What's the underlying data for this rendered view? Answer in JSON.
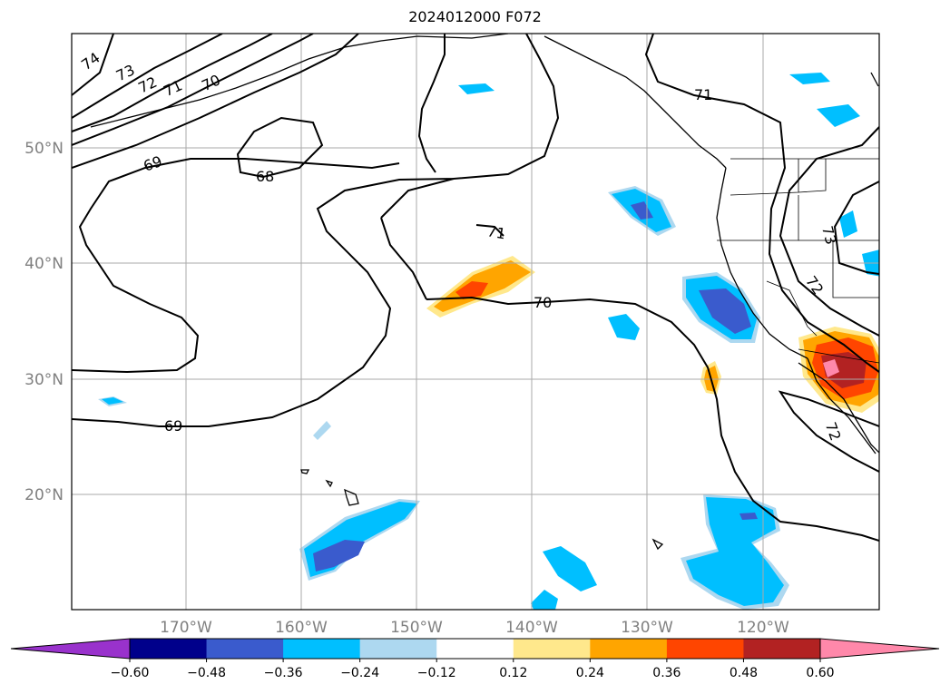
{
  "title": "2024012000 F072",
  "lat_labels": [
    "50°N",
    "40°N",
    "30°N",
    "20°N"
  ],
  "lon_labels": [
    "170°W",
    "160°W",
    "150°W",
    "140°W",
    "130°W",
    "120°W"
  ],
  "colorbar": {
    "colors": [
      "#9932cc",
      "#00008b",
      "#3a5bcd",
      "#00bfff",
      "#add8f0",
      "#ffffff",
      "#ffe88c",
      "#ffa500",
      "#ff4500",
      "#b22222",
      "#ff88aa"
    ],
    "tick_labels": [
      "−0.60",
      "−0.48",
      "−0.36",
      "−0.24",
      "−0.12",
      "0.12",
      "0.24",
      "0.36",
      "0.48",
      "0.60"
    ]
  },
  "contour_labels": [
    {
      "text": "74"
    },
    {
      "text": "73"
    },
    {
      "text": "72"
    },
    {
      "text": "71"
    },
    {
      "text": "70"
    },
    {
      "text": "69"
    },
    {
      "text": "68"
    },
    {
      "text": "71"
    },
    {
      "text": "70"
    },
    {
      "text": "71"
    },
    {
      "text": "73"
    },
    {
      "text": "72"
    },
    {
      "text": "69"
    },
    {
      "text": "72"
    }
  ]
}
